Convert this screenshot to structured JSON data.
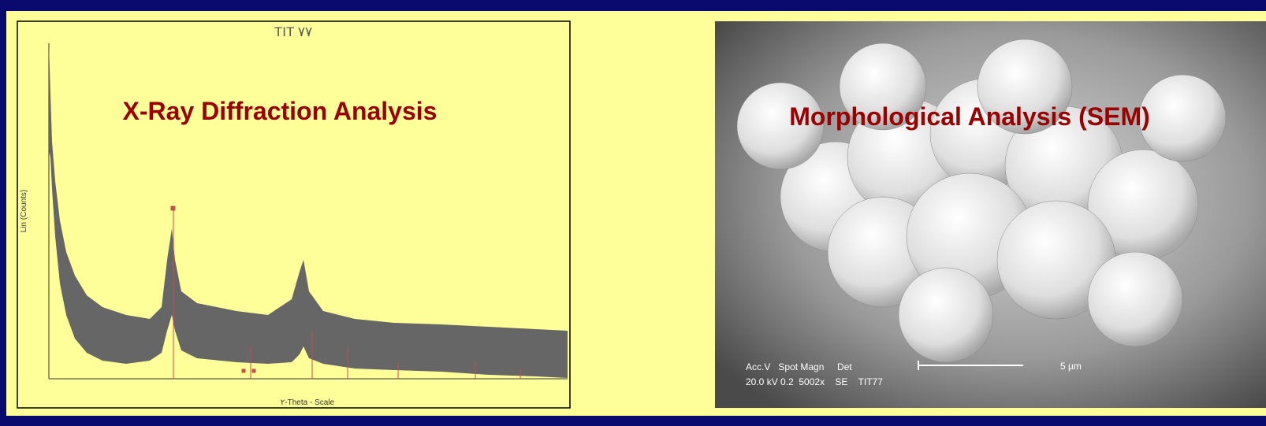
{
  "xrd": {
    "title": "TIT ٧٧",
    "heading": "X-Ray Diffraction Analysis",
    "y_label": "Lin (Counts)",
    "x_label": "٢-Theta - Scale"
  },
  "sem": {
    "heading": "Morphological Analysis (SEM)",
    "info_line1": "Acc.V   Spot Magn     Det",
    "info_line2": "20.0 kV 0.2  5002x    SE    TIT77",
    "scale": "5 µm"
  }
}
